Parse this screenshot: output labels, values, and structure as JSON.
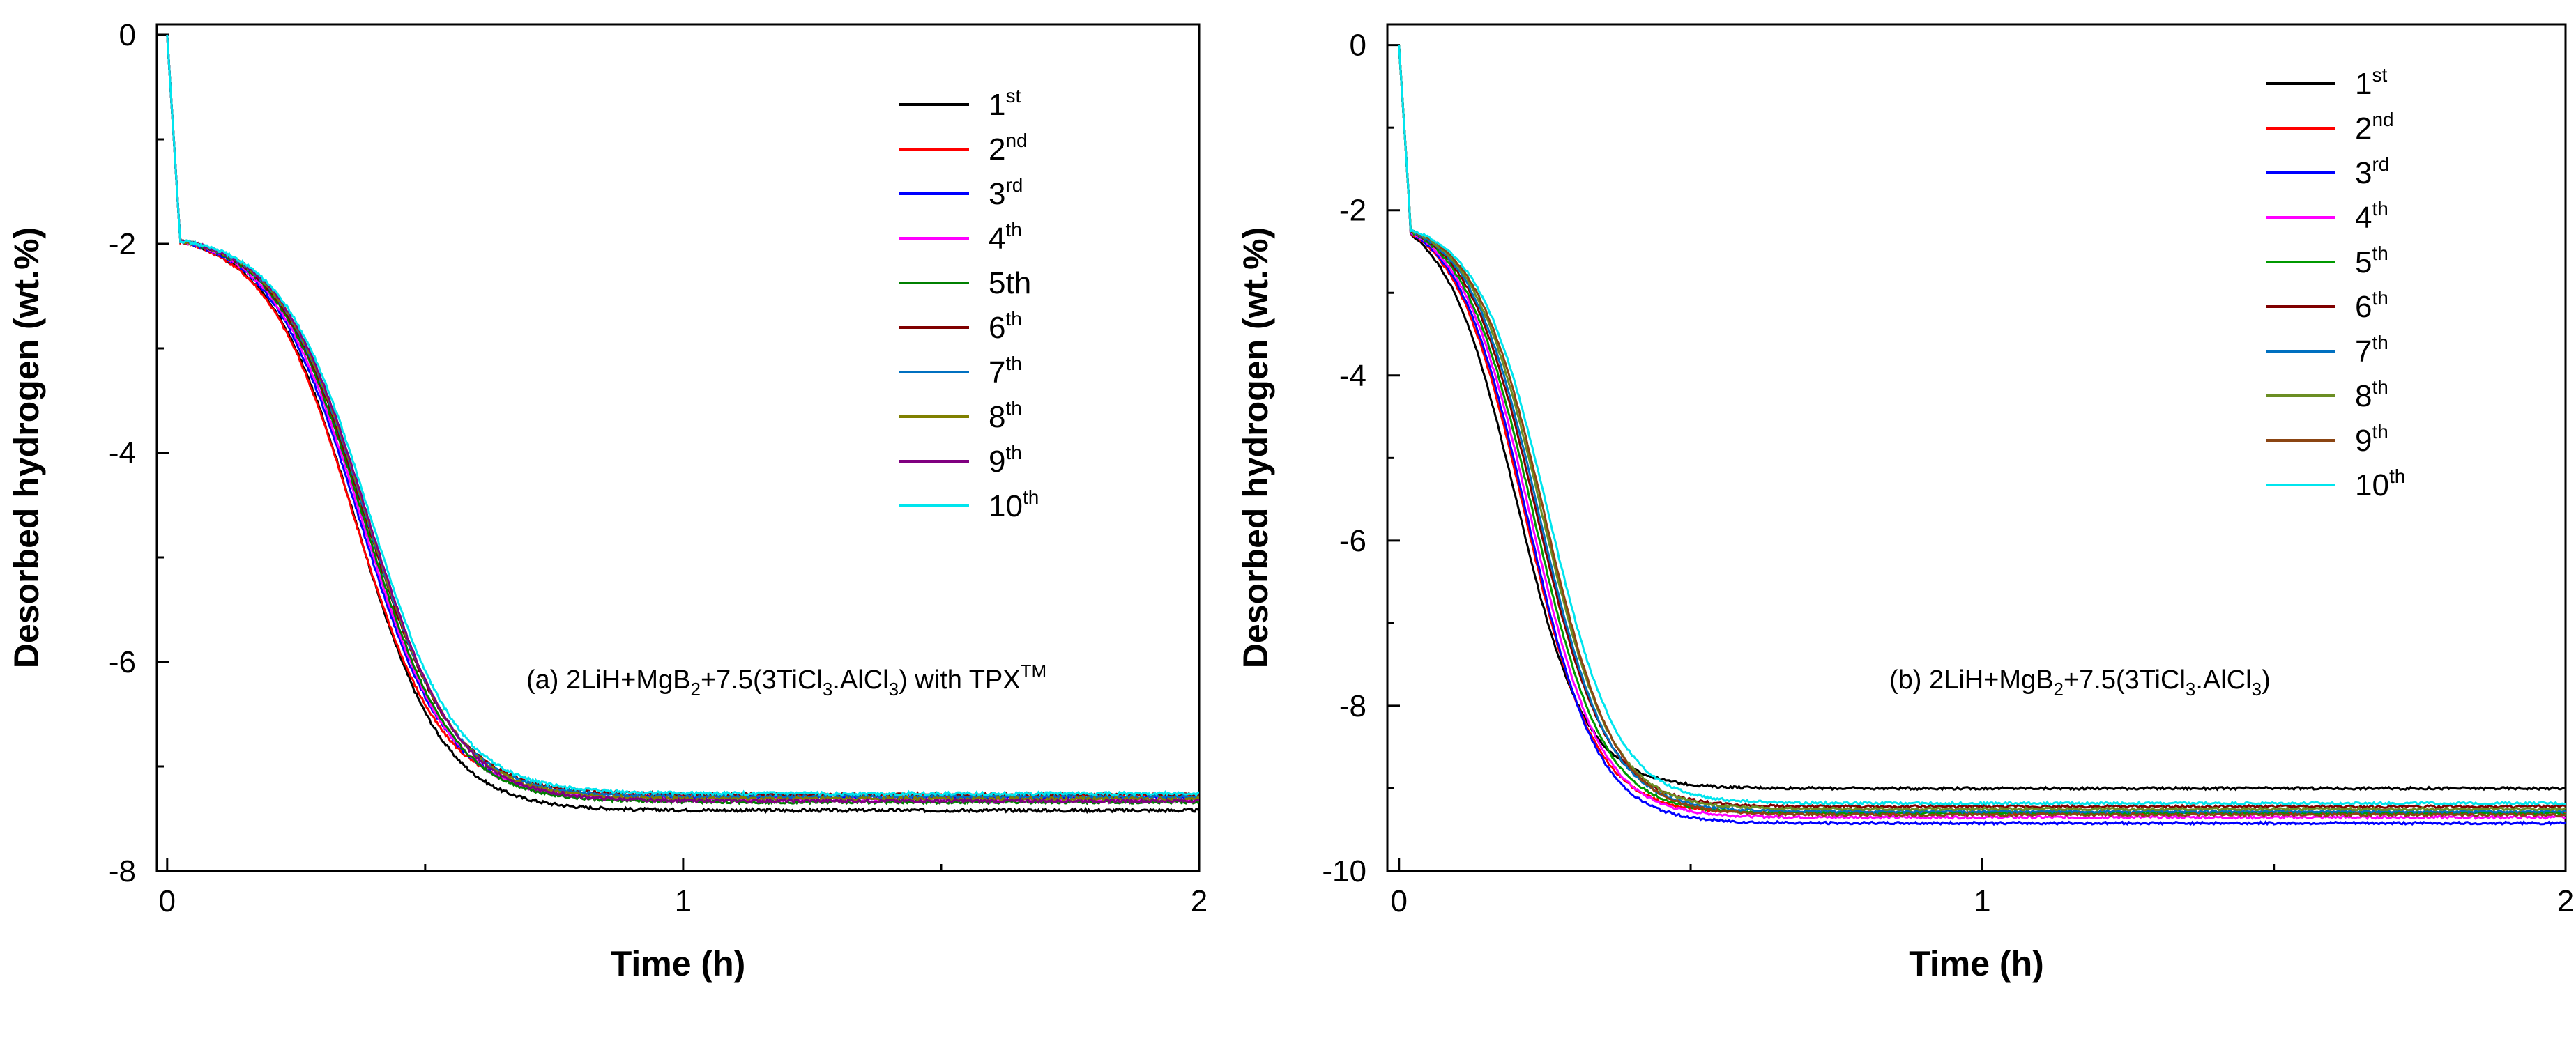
{
  "chart_data": [
    {
      "type": "line",
      "panel": "a",
      "xlabel": "Time (h)",
      "ylabel": "Desorbed hydrogen (wt.%)",
      "xlim": [
        -0.02,
        2
      ],
      "ylim": [
        -8,
        0.1
      ],
      "xticks": [
        0,
        1,
        2
      ],
      "xtick_labels": [
        "0",
        "1",
        "2"
      ],
      "yticks": [
        0,
        -2,
        -4,
        -6,
        -8
      ],
      "ytick_labels": [
        "0",
        "-2",
        "-4",
        "-6",
        "-8"
      ],
      "legend_position": "top-right",
      "annotation": {
        "prefix": "(a) 2LiH+MgB",
        "sub1": "2",
        "middle": "+7.5(3TiCl",
        "sub2": "3",
        "after": ".AlCl",
        "sub3": "3",
        "suffix": ") with TPX",
        "sup": "TM"
      },
      "curve_params": {
        "plateau_start": -1.95,
        "t_drop": 0.025,
        "t_mid": 0.37,
        "width": 0.085
      },
      "series": [
        {
          "name": "1",
          "sup": "st",
          "color": "#000000",
          "final": -7.42,
          "mid_shift": -0.005
        },
        {
          "name": "2",
          "sup": "nd",
          "color": "#ff0000",
          "final": -7.28,
          "mid_shift": -0.01
        },
        {
          "name": "3",
          "sup": "rd",
          "color": "#0000ff",
          "final": -7.3,
          "mid_shift": 0.0
        },
        {
          "name": "4",
          "sup": "th",
          "color": "#ff00ff",
          "final": -7.32,
          "mid_shift": 0.005
        },
        {
          "name": "5th",
          "sup": "",
          "color": "#008000",
          "final": -7.34,
          "mid_shift": 0.01
        },
        {
          "name": "6",
          "sup": "th",
          "color": "#800000",
          "final": -7.27,
          "mid_shift": 0.012
        },
        {
          "name": "7",
          "sup": "th",
          "color": "#0070c0",
          "final": -7.29,
          "mid_shift": 0.015
        },
        {
          "name": "8",
          "sup": "th",
          "color": "#808000",
          "final": -7.31,
          "mid_shift": 0.017
        },
        {
          "name": "9",
          "sup": "th",
          "color": "#800080",
          "final": -7.33,
          "mid_shift": 0.019
        },
        {
          "name": "10",
          "sup": "th",
          "color": "#00e5ee",
          "final": -7.26,
          "mid_shift": 0.022
        }
      ]
    },
    {
      "type": "line",
      "panel": "b",
      "xlabel": "Time (h)",
      "ylabel": "Desorbed hydrogen (wt.%)",
      "xlim": [
        -0.02,
        2
      ],
      "ylim": [
        -10,
        0.25
      ],
      "xticks": [
        0,
        1,
        2
      ],
      "xtick_labels": [
        "0",
        "1",
        "2"
      ],
      "yticks": [
        0,
        -2,
        -4,
        -6,
        -8,
        -10
      ],
      "ytick_labels": [
        "0",
        "-2",
        "-4",
        "-6",
        "-8",
        "-10"
      ],
      "legend_position": "top-right",
      "annotation": {
        "prefix": "(b) 2LiH+MgB",
        "sub1": "2",
        "middle": "+7.5(3TiCl",
        "sub2": "3",
        "after": ".AlCl",
        "sub3": "3",
        "suffix": ")",
        "sup": ""
      },
      "curve_params": {
        "plateau_start": -2.2,
        "t_drop": 0.02,
        "t_mid": 0.22,
        "width": 0.06
      },
      "series": [
        {
          "name": "1",
          "sup": "st",
          "color": "#000000",
          "final": -9.0,
          "mid_shift": -0.02
        },
        {
          "name": "2",
          "sup": "nd",
          "color": "#ff0000",
          "final": -9.3,
          "mid_shift": -0.005
        },
        {
          "name": "3",
          "sup": "rd",
          "color": "#0000ff",
          "final": -9.42,
          "mid_shift": 0.0
        },
        {
          "name": "4",
          "sup": "th",
          "color": "#ff00ff",
          "final": -9.35,
          "mid_shift": 0.005
        },
        {
          "name": "5",
          "sup": "th",
          "color": "#009900",
          "final": -9.3,
          "mid_shift": 0.01
        },
        {
          "name": "6",
          "sup": "th",
          "color": "#800000",
          "final": -9.22,
          "mid_shift": 0.015
        },
        {
          "name": "7",
          "sup": "th",
          "color": "#0070c0",
          "final": -9.28,
          "mid_shift": 0.02
        },
        {
          "name": "8",
          "sup": "th",
          "color": "#6b8e23",
          "final": -9.25,
          "mid_shift": 0.025
        },
        {
          "name": "9",
          "sup": "th",
          "color": "#8b4513",
          "final": -9.32,
          "mid_shift": 0.03
        },
        {
          "name": "10",
          "sup": "th",
          "color": "#00e5ee",
          "final": -9.18,
          "mid_shift": 0.035
        }
      ]
    }
  ]
}
